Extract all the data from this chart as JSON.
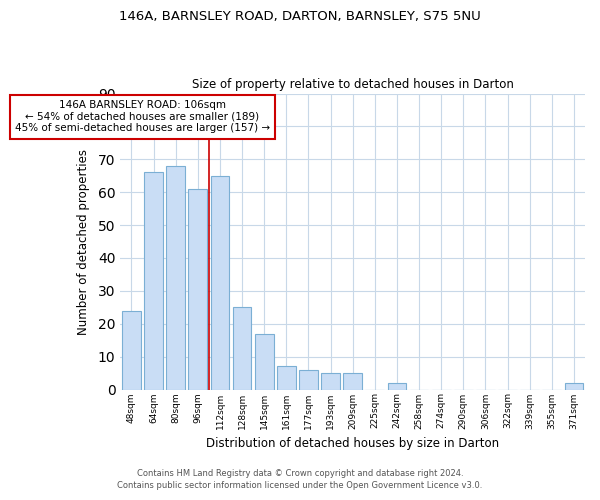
{
  "title1": "146A, BARNSLEY ROAD, DARTON, BARNSLEY, S75 5NU",
  "title2": "Size of property relative to detached houses in Darton",
  "xlabel": "Distribution of detached houses by size in Darton",
  "ylabel": "Number of detached properties",
  "bar_labels": [
    "48sqm",
    "64sqm",
    "80sqm",
    "96sqm",
    "112sqm",
    "128sqm",
    "145sqm",
    "161sqm",
    "177sqm",
    "193sqm",
    "209sqm",
    "225sqm",
    "242sqm",
    "258sqm",
    "274sqm",
    "290sqm",
    "306sqm",
    "322sqm",
    "339sqm",
    "355sqm",
    "371sqm"
  ],
  "bar_values": [
    24,
    66,
    68,
    61,
    65,
    25,
    17,
    7,
    6,
    5,
    5,
    0,
    2,
    0,
    0,
    0,
    0,
    0,
    0,
    0,
    2
  ],
  "bar_color": "#c9ddf5",
  "bar_edge_color": "#7bafd4",
  "red_line_x": 3.5,
  "marker_line_color": "#cc0000",
  "annotation_line1": "146A BARNSLEY ROAD: 106sqm",
  "annotation_line2": "← 54% of detached houses are smaller (189)",
  "annotation_line3": "45% of semi-detached houses are larger (157) →",
  "annotation_box_color": "white",
  "annotation_box_edge": "#cc0000",
  "ylim": [
    0,
    90
  ],
  "yticks": [
    0,
    10,
    20,
    30,
    40,
    50,
    60,
    70,
    80,
    90
  ],
  "footer1": "Contains HM Land Registry data © Crown copyright and database right 2024.",
  "footer2": "Contains public sector information licensed under the Open Government Licence v3.0.",
  "bg_color": "#ffffff",
  "grid_color": "#c8d8e8"
}
